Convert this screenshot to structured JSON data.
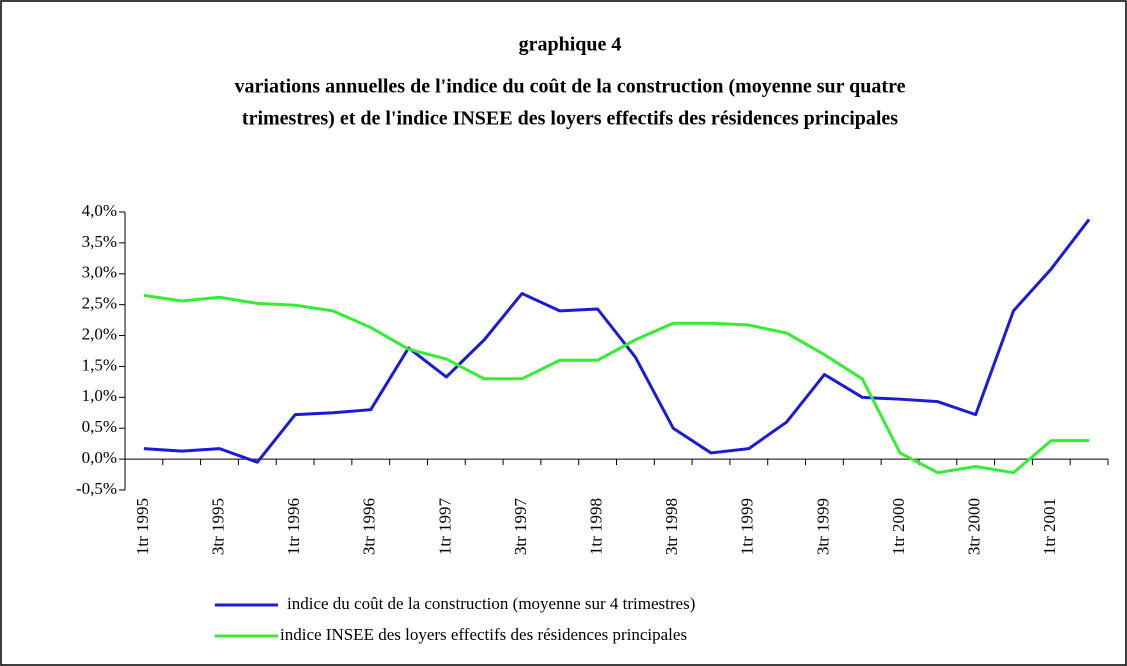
{
  "chart_data": {
    "type": "line",
    "title": "graphique 4",
    "subtitle": [
      "variations annuelles de l'indice du coût de la construction (moyenne sur quatre",
      "trimestres) et de l'indice INSEE des loyers effectifs des résidences principales"
    ],
    "categories": [
      "1tr 1995",
      null,
      "3tr 1995",
      null,
      "1tr 1996",
      null,
      "3tr 1996",
      null,
      "1tr 1997",
      null,
      "3tr 1997",
      null,
      "1tr 1998",
      null,
      "3tr 1998",
      null,
      "1tr 1999",
      null,
      "3tr 1999",
      null,
      "1tr 2000",
      null,
      "3tr 2000",
      null,
      "1tr 2001",
      null
    ],
    "series": [
      {
        "name": "indice du coût de la construction (moyenne sur 4 trimestres)",
        "color": "#1a1ad8",
        "values": [
          0.17,
          0.13,
          0.17,
          -0.05,
          0.72,
          0.75,
          0.8,
          1.8,
          1.33,
          1.93,
          2.68,
          2.4,
          2.43,
          1.65,
          0.5,
          0.1,
          0.17,
          0.6,
          1.37,
          1.0,
          0.97,
          0.93,
          0.72,
          2.4,
          3.08,
          3.88
        ]
      },
      {
        "name": "indice INSEE des loyers effectifs des résidences principales",
        "color": "#33ee33",
        "values": [
          2.65,
          2.56,
          2.62,
          2.52,
          2.49,
          2.4,
          2.13,
          1.78,
          1.62,
          1.3,
          1.3,
          1.6,
          1.6,
          1.93,
          2.2,
          2.2,
          2.17,
          2.04,
          1.69,
          1.3,
          0.1,
          -0.22,
          -0.12,
          -0.22,
          0.3,
          0.3
        ]
      }
    ],
    "ylim": [
      -0.5,
      4.0
    ],
    "yticks": [
      {
        "value": -0.5,
        "label": "-0,5%"
      },
      {
        "value": 0,
        "label": "0,0%"
      },
      {
        "value": 0.5,
        "label": "0,5%"
      },
      {
        "value": 1.0,
        "label": "1,0%"
      },
      {
        "value": 1.5,
        "label": "1,5%"
      },
      {
        "value": 2.0,
        "label": "2,0%"
      },
      {
        "value": 2.5,
        "label": "2,5%"
      },
      {
        "value": 3.0,
        "label": "3,0%"
      },
      {
        "value": 3.5,
        "label": "3,5%"
      },
      {
        "value": 4.0,
        "label": "4,0%"
      }
    ],
    "grid": false
  }
}
